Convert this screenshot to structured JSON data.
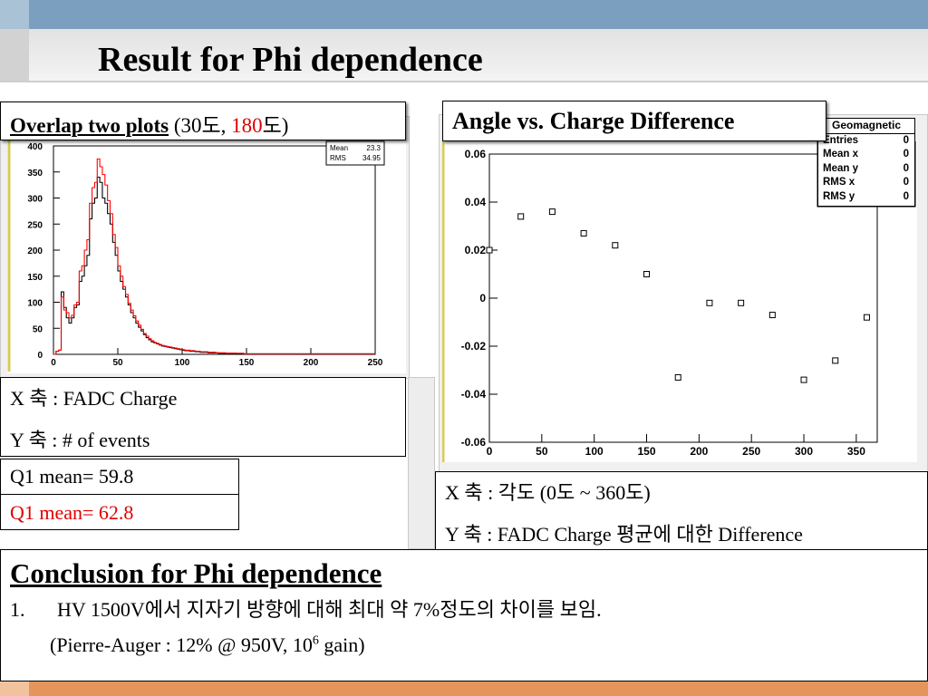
{
  "slide": {
    "title": "Result for Phi dependence",
    "overlap": {
      "label_bold": "Overlap two plots",
      "pre": "(30도, ",
      "red": "180",
      "post": "도)"
    },
    "angle_title": "Angle vs. Charge Difference",
    "hist_axis_text": {
      "x": "X 축 : FADC Charge",
      "y": "Y 축 : # of events"
    },
    "q1_black": "Q1 mean= 59.8",
    "q1_red": "Q1 mean= 62.8",
    "scatter_axis_text": {
      "x": "X 축 : 각도 (0도 ~ 360도)",
      "y": "Y 축 :  FADC Charge 평균에 대한 Difference"
    },
    "conclusion": {
      "title": "Conclusion for Phi dependence",
      "num": "1.",
      "line1": "HV 1500V에서 지자기 방향에 대해 최대 약 7%정도의 차이를 보임.",
      "line2_pre": "(Pierre-Auger : 12% @ 950V, 10",
      "line2_sup": "6",
      "line2_post": " gain)"
    },
    "colors": {
      "series_black": "#000000",
      "series_red": "#ff0000",
      "red_text": "#e00000",
      "header_bar": "#7a9fbf",
      "footer_bar": "#e6955a"
    }
  },
  "chart_data": [
    {
      "type": "histogram",
      "xlim": [
        0,
        250
      ],
      "ylim": [
        0,
        400
      ],
      "xticks": [
        "0",
        "50",
        "100",
        "150",
        "200",
        "250"
      ],
      "yticks": [
        "0",
        "50",
        "100",
        "150",
        "200",
        "250",
        "300",
        "350",
        "400"
      ],
      "stats": {
        "mean_label": "Mean",
        "mean": "23.3",
        "rms_label": "RMS",
        "rms": "34.95"
      },
      "bin_width": 2,
      "series": [
        {
          "color": "#000000",
          "values": [
            0,
            6,
            8,
            120,
            90,
            70,
            60,
            70,
            90,
            95,
            140,
            150,
            170,
            190,
            260,
            290,
            300,
            340,
            330,
            300,
            290,
            270,
            250,
            215,
            190,
            160,
            140,
            125,
            110,
            95,
            80,
            70,
            60,
            52,
            45,
            38,
            32,
            28,
            24,
            22,
            20,
            18,
            16,
            15,
            14,
            13,
            12,
            11,
            10,
            9,
            8,
            7,
            7,
            6,
            6,
            5,
            5,
            4,
            4,
            4,
            3,
            3,
            3,
            3,
            2,
            2,
            2,
            2,
            2,
            2,
            2,
            1,
            1,
            1,
            1,
            1,
            1,
            1,
            1,
            1,
            1,
            1,
            1,
            1,
            1,
            1,
            1,
            1,
            1,
            1,
            1,
            1,
            1,
            1,
            1,
            1,
            1,
            1,
            1,
            1,
            1,
            1,
            1,
            1,
            1,
            1,
            1,
            1,
            1,
            1,
            1,
            1,
            1,
            1,
            1,
            1,
            1,
            1,
            1,
            1,
            1,
            1,
            1,
            1,
            1
          ]
        },
        {
          "color": "#ff0000",
          "values": [
            0,
            6,
            8,
            110,
            85,
            80,
            70,
            75,
            95,
            100,
            160,
            170,
            200,
            220,
            290,
            320,
            330,
            375,
            360,
            345,
            325,
            295,
            270,
            230,
            205,
            170,
            150,
            130,
            115,
            98,
            85,
            74,
            64,
            56,
            48,
            40,
            35,
            30,
            26,
            23,
            21,
            19,
            17,
            16,
            15,
            14,
            13,
            12,
            11,
            10,
            9,
            8,
            8,
            7,
            7,
            6,
            6,
            5,
            5,
            5,
            4,
            4,
            4,
            3,
            3,
            3,
            3,
            2,
            2,
            2,
            2,
            2,
            2,
            2,
            1,
            1,
            1,
            1,
            1,
            1,
            1,
            1,
            1,
            1,
            1,
            1,
            1,
            1,
            1,
            1,
            1,
            1,
            1,
            1,
            1,
            1,
            1,
            1,
            1,
            1,
            1,
            1,
            1,
            1,
            1,
            1,
            1,
            1,
            1,
            1,
            1,
            1,
            1,
            1,
            1,
            1,
            1,
            1,
            1,
            1,
            1,
            1,
            1,
            1,
            1
          ]
        }
      ]
    },
    {
      "type": "scatter",
      "xlim": [
        0,
        370
      ],
      "ylim": [
        -0.06,
        0.06
      ],
      "xticks": [
        "0",
        "50",
        "100",
        "150",
        "200",
        "250",
        "300",
        "350"
      ],
      "yticks": [
        "0.06",
        "0.04",
        "0.02",
        "0",
        "-0.02",
        "-0.04",
        "-0.06"
      ],
      "stats": {
        "title": "Geomagnetic",
        "rows": [
          {
            "label": "Entries",
            "value": "0"
          },
          {
            "label": "Mean x",
            "value": "0"
          },
          {
            "label": "Mean y",
            "value": "0"
          },
          {
            "label": "RMS x",
            "value": "0"
          },
          {
            "label": "RMS y",
            "value": "0"
          }
        ]
      },
      "x": [
        0,
        30,
        60,
        90,
        120,
        150,
        180,
        210,
        240,
        270,
        300,
        330,
        360
      ],
      "y": [
        0.02,
        0.034,
        0.036,
        0.027,
        0.022,
        0.01,
        -0.033,
        -0.002,
        -0.002,
        -0.007,
        -0.034,
        -0.026,
        -0.008
      ]
    }
  ]
}
